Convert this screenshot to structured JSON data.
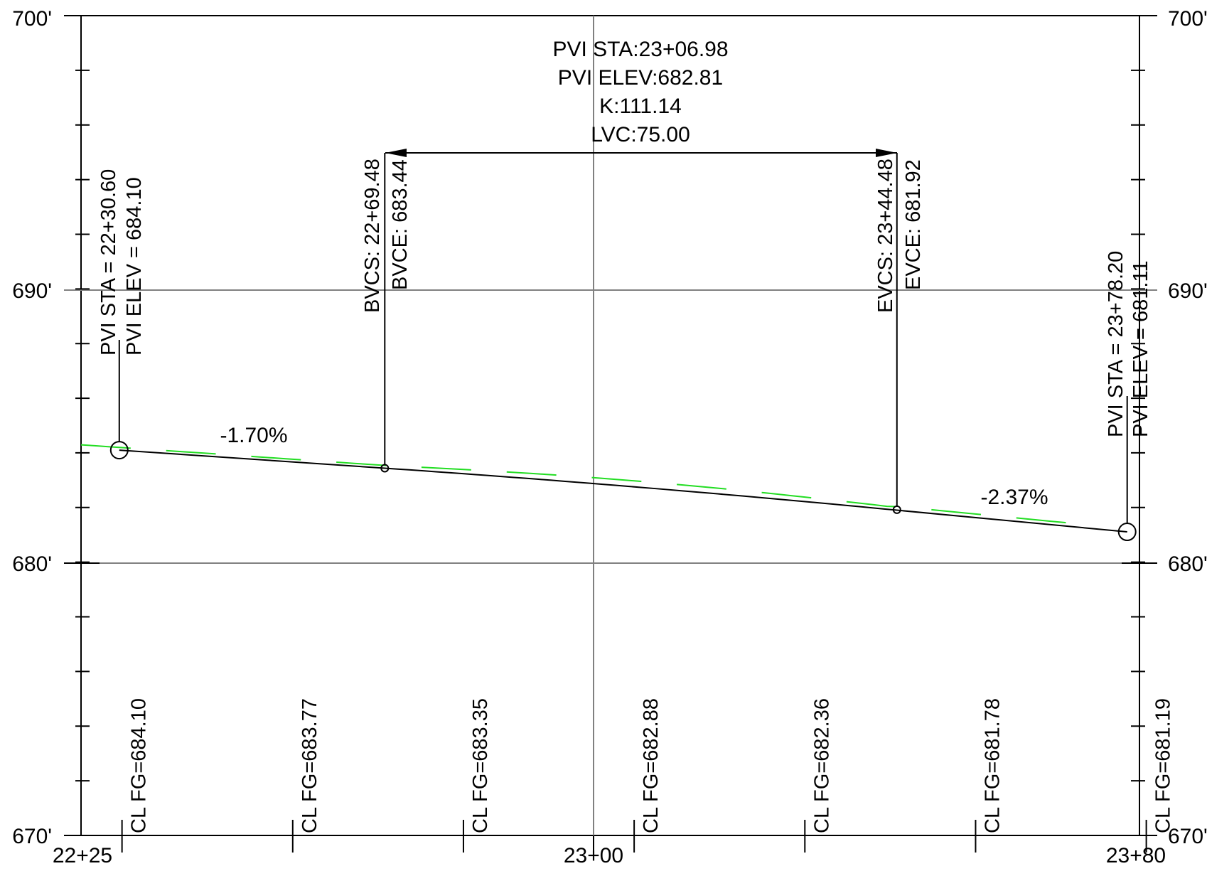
{
  "profile": {
    "y_axis": {
      "min": 670,
      "max": 700,
      "labels": [
        {
          "elev": 700,
          "text": "700'"
        },
        {
          "elev": 690,
          "text": "690'"
        },
        {
          "elev": 680,
          "text": "680'"
        },
        {
          "elev": 670,
          "text": "670'"
        }
      ]
    },
    "x_axis": {
      "start_station": 2225,
      "end_station": 2380,
      "labels": [
        {
          "station": 2225,
          "text": "22+25"
        },
        {
          "station": 2300,
          "text": "23+00"
        },
        {
          "station": 2380,
          "text": "23+80"
        }
      ]
    },
    "curve_info": {
      "pvi_sta": "PVI STA:23+06.98",
      "pvi_elev": "PVI ELEV:682.81",
      "k": "K:111.14",
      "lvc": "LVC:75.00"
    },
    "bvc": {
      "station": 2269.48,
      "elev": 683.44,
      "sta_label": "BVCS: 22+69.48",
      "elev_label": "BVCE: 683.44"
    },
    "evc": {
      "station": 2344.48,
      "elev": 681.92,
      "sta_label": "EVCS: 23+44.48",
      "elev_label": "EVCE: 681.92"
    },
    "pvi_start": {
      "station": 2230.6,
      "elev": 684.1,
      "sta_label": "PVI STA = 22+30.60",
      "elev_label": "PVI ELEV =  684.10"
    },
    "pvi_end": {
      "station": 2378.2,
      "elev": 681.11,
      "sta_label": "PVI STA = 23+78.20",
      "elev_label": "PVI ELEV =  681.11"
    },
    "grades": {
      "left": "-1.70%",
      "right": "-2.37%"
    },
    "fg_labels": [
      {
        "station": 2231,
        "text": "CL FG=684.10"
      },
      {
        "station": 2256,
        "text": "CL FG=683.77"
      },
      {
        "station": 2281,
        "text": "CL FG=683.35"
      },
      {
        "station": 2306,
        "text": "CL FG=682.88"
      },
      {
        "station": 2331,
        "text": "CL FG=682.36"
      },
      {
        "station": 2356,
        "text": "CL FG=681.78"
      },
      {
        "station": 2381,
        "text": "CL FG=681.19"
      }
    ],
    "colors": {
      "lines": "#000000",
      "grid": "#808080",
      "existing_ground": "#22dd22"
    }
  }
}
